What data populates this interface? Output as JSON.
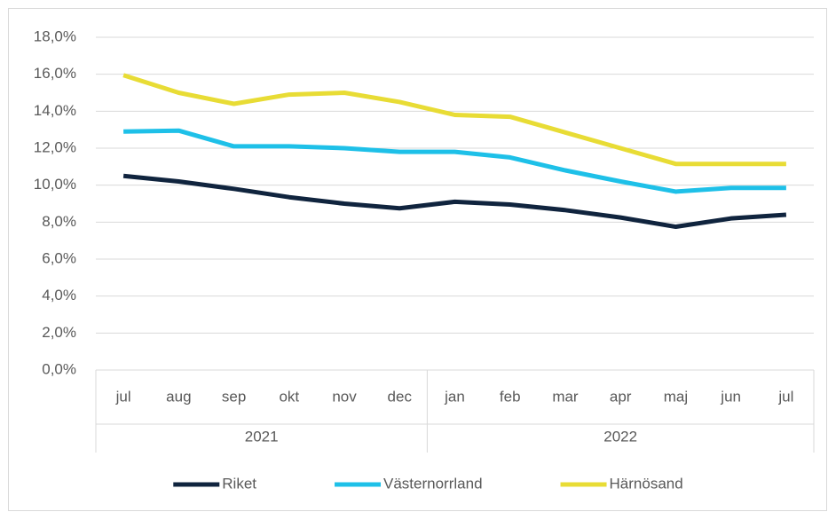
{
  "chart_data": {
    "type": "line",
    "category_groups": [
      {
        "name": "2021",
        "categories": [
          "jul",
          "aug",
          "sep",
          "okt",
          "nov",
          "dec"
        ]
      },
      {
        "name": "2022",
        "categories": [
          "jan",
          "feb",
          "mar",
          "apr",
          "maj",
          "jun",
          "jul"
        ]
      }
    ],
    "series": [
      {
        "name": "Riket",
        "color": "#10243e",
        "values": [
          10.5,
          10.2,
          9.8,
          9.35,
          9.0,
          8.75,
          9.1,
          8.95,
          8.65,
          8.25,
          7.75,
          8.2,
          8.4
        ]
      },
      {
        "name": "Västernorrland",
        "color": "#1ec0e8",
        "values": [
          12.9,
          12.95,
          12.1,
          12.1,
          12.0,
          11.8,
          11.8,
          11.5,
          10.8,
          10.2,
          9.65,
          9.85,
          9.85
        ]
      },
      {
        "name": "Härnösand",
        "color": "#e8dc35",
        "values": [
          15.95,
          15.0,
          14.4,
          14.9,
          15.0,
          14.5,
          13.8,
          13.7,
          12.85,
          12.0,
          11.15,
          11.15,
          11.15
        ]
      }
    ],
    "ylim": [
      0,
      18
    ],
    "yticks": [
      {
        "value": 0,
        "label": "0,0%"
      },
      {
        "value": 2,
        "label": "2,0%"
      },
      {
        "value": 4,
        "label": "4,0%"
      },
      {
        "value": 6,
        "label": "6,0%"
      },
      {
        "value": 8,
        "label": "8,0%"
      },
      {
        "value": 10,
        "label": "10,0%"
      },
      {
        "value": 12,
        "label": "12,0%"
      },
      {
        "value": 14,
        "label": "14,0%"
      },
      {
        "value": 16,
        "label": "16,0%"
      },
      {
        "value": 18,
        "label": "18,0%"
      }
    ],
    "grid": true,
    "legend": "bottom"
  }
}
